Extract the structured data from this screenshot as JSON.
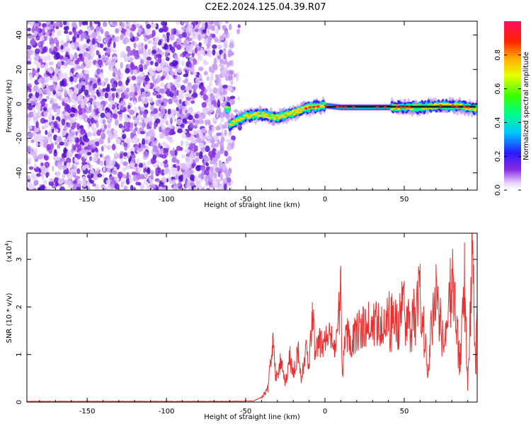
{
  "title": "C2E2.2024.125.04.39.R07",
  "chart_data": [
    {
      "type": "heatmap",
      "xlabel": "Height of straight line (km)",
      "ylabel": "Frequency (Hz)",
      "xlim": [
        -188,
        96
      ],
      "ylim": [
        -50,
        48
      ],
      "xticks": [
        -150,
        -100,
        -50,
        0,
        50
      ],
      "yticks": [
        -40,
        -20,
        0,
        20,
        40
      ],
      "grid": false,
      "colorbar": {
        "label": "Normalized spectral amplitude",
        "range": [
          0,
          1
        ],
        "ticks": [
          "0.0",
          "0.2",
          "0.4",
          "0.6",
          "0.8"
        ],
        "colormap": "rainbow (white-violet-blue-cyan-green-yellow-red-pink)"
      },
      "description_points": {
        "noise_region_x": [
          -188,
          -58
        ],
        "noise_region_y": [
          -50,
          48
        ],
        "signal_ridge": {
          "x": [
            -60,
            -50,
            -40,
            -30,
            -20,
            -10,
            0,
            10,
            20,
            30,
            40,
            50,
            60,
            70,
            80,
            90,
            96
          ],
          "y": [
            -12,
            -7,
            -6,
            -8,
            -5,
            -2,
            -1,
            -2,
            -2,
            -2,
            -2,
            -2,
            -2,
            -1,
            -1,
            -2,
            -3
          ]
        }
      }
    },
    {
      "type": "line",
      "xlabel": "Height of straight line (km)",
      "ylabel": "SNR (10 * v/v)",
      "y_multiplier": "(x10",
      "y_multiplier_exp": "4",
      "y_multiplier_close": ")",
      "xlim": [
        -188,
        96
      ],
      "ylim": [
        0,
        3.55
      ],
      "xticks": [
        -150,
        -100,
        -50,
        0,
        50
      ],
      "yticks": [
        0,
        1,
        2,
        3
      ],
      "color": "#e53232",
      "series": [
        {
          "x": [
            -188,
            -120,
            -60,
            -45,
            -40,
            -36,
            -33,
            -31,
            -28,
            -25,
            -22,
            -20,
            -17,
            -15,
            -12,
            -10,
            -8,
            -6,
            -4,
            -2,
            0,
            3,
            6,
            8,
            10,
            11,
            13,
            16,
            20,
            25,
            30,
            35,
            40,
            45,
            50,
            55,
            60,
            65,
            70,
            75,
            80,
            85,
            88,
            90,
            93,
            95,
            96
          ],
          "y": [
            0.01,
            0.01,
            0.01,
            0.02,
            0.1,
            0.3,
            1.4,
            0.5,
            0.9,
            0.4,
            1.0,
            0.6,
            1.2,
            0.4,
            1.3,
            0.7,
            2.1,
            1.0,
            1.4,
            1.3,
            1.4,
            1.4,
            1.3,
            1.6,
            2.5,
            0.6,
            1.6,
            1.4,
            1.6,
            1.7,
            1.8,
            1.8,
            1.9,
            1.8,
            2.1,
            1.8,
            2.4,
            0.8,
            2.9,
            1.2,
            2.8,
            0.9,
            2.9,
            0.3,
            3.4,
            0.6,
            2.3
          ]
        }
      ]
    }
  ]
}
